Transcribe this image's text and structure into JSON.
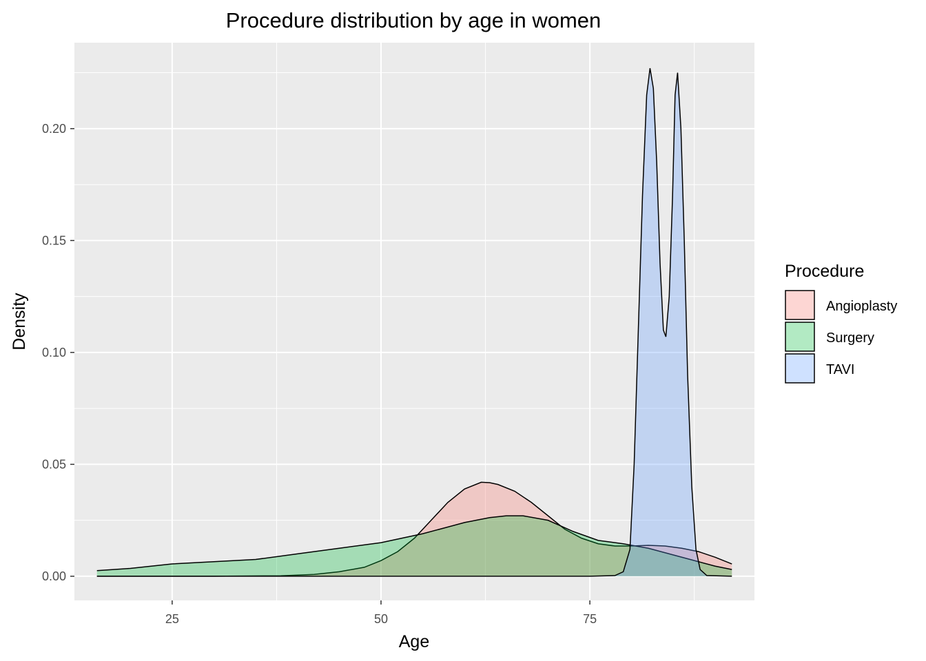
{
  "chart_data": {
    "type": "area",
    "title": "Procedure distribution by age in women",
    "xlabel": "Age",
    "ylabel": "Density",
    "xlim": [
      13.3,
      94.7
    ],
    "ylim": [
      -0.0108,
      0.2384
    ],
    "xticks": [
      25,
      50,
      75
    ],
    "xtick_labels": [
      "25",
      "50",
      "75"
    ],
    "xticks_minor": [
      12.5,
      37.5,
      62.5,
      87.5
    ],
    "yticks": [
      0.0,
      0.05,
      0.1,
      0.15,
      0.2
    ],
    "ytick_labels": [
      "0.00",
      "0.05",
      "0.10",
      "0.15",
      "0.20"
    ],
    "yticks_minor": [
      0.025,
      0.075,
      0.125,
      0.175,
      0.225
    ],
    "grid": true,
    "background": "#ebebeb",
    "legend": {
      "title": "Procedure",
      "position": "right",
      "entries": [
        "Angioplasty",
        "Surgery",
        "TAVI"
      ]
    },
    "series": [
      {
        "name": "Angioplasty",
        "color": "#f8766d",
        "points": [
          [
            16,
            0.0
          ],
          [
            30,
            0.0
          ],
          [
            38,
            0.0002
          ],
          [
            42,
            0.0008
          ],
          [
            45,
            0.002
          ],
          [
            48,
            0.004
          ],
          [
            50,
            0.007
          ],
          [
            52,
            0.011
          ],
          [
            54,
            0.017
          ],
          [
            56,
            0.025
          ],
          [
            58,
            0.033
          ],
          [
            60,
            0.039
          ],
          [
            62,
            0.042
          ],
          [
            63,
            0.0418
          ],
          [
            64,
            0.041
          ],
          [
            66,
            0.038
          ],
          [
            68,
            0.033
          ],
          [
            70,
            0.027
          ],
          [
            72,
            0.021
          ],
          [
            74,
            0.017
          ],
          [
            76,
            0.0145
          ],
          [
            78,
            0.0135
          ],
          [
            80,
            0.0135
          ],
          [
            82,
            0.0138
          ],
          [
            84,
            0.0135
          ],
          [
            86,
            0.0125
          ],
          [
            88,
            0.011
          ],
          [
            90,
            0.0085
          ],
          [
            92,
            0.0055
          ]
        ]
      },
      {
        "name": "Surgery",
        "color": "#00ba38",
        "points": [
          [
            16,
            0.0025
          ],
          [
            20,
            0.0035
          ],
          [
            25,
            0.0055
          ],
          [
            30,
            0.0065
          ],
          [
            35,
            0.0075
          ],
          [
            40,
            0.01
          ],
          [
            45,
            0.0125
          ],
          [
            50,
            0.015
          ],
          [
            55,
            0.019
          ],
          [
            60,
            0.024
          ],
          [
            63,
            0.0262
          ],
          [
            65,
            0.027
          ],
          [
            67,
            0.027
          ],
          [
            70,
            0.025
          ],
          [
            73,
            0.02
          ],
          [
            76,
            0.016
          ],
          [
            79,
            0.0145
          ],
          [
            82,
            0.0125
          ],
          [
            85,
            0.0095
          ],
          [
            88,
            0.0065
          ],
          [
            90,
            0.0045
          ],
          [
            92,
            0.003
          ]
        ]
      },
      {
        "name": "TAVI",
        "color": "#619cff",
        "points": [
          [
            16,
            0.0
          ],
          [
            75,
            0.0
          ],
          [
            78,
            0.0003
          ],
          [
            79,
            0.002
          ],
          [
            79.8,
            0.012
          ],
          [
            80.3,
            0.05
          ],
          [
            80.8,
            0.11
          ],
          [
            81.3,
            0.17
          ],
          [
            81.8,
            0.215
          ],
          [
            82.2,
            0.227
          ],
          [
            82.6,
            0.218
          ],
          [
            83.0,
            0.185
          ],
          [
            83.4,
            0.14
          ],
          [
            83.8,
            0.11
          ],
          [
            84.1,
            0.107
          ],
          [
            84.5,
            0.125
          ],
          [
            84.9,
            0.17
          ],
          [
            85.2,
            0.215
          ],
          [
            85.5,
            0.225
          ],
          [
            85.9,
            0.2
          ],
          [
            86.3,
            0.15
          ],
          [
            86.7,
            0.09
          ],
          [
            87.2,
            0.04
          ],
          [
            87.7,
            0.012
          ],
          [
            88.2,
            0.003
          ],
          [
            89,
            0.0003
          ],
          [
            92,
            0.0
          ]
        ]
      }
    ]
  }
}
